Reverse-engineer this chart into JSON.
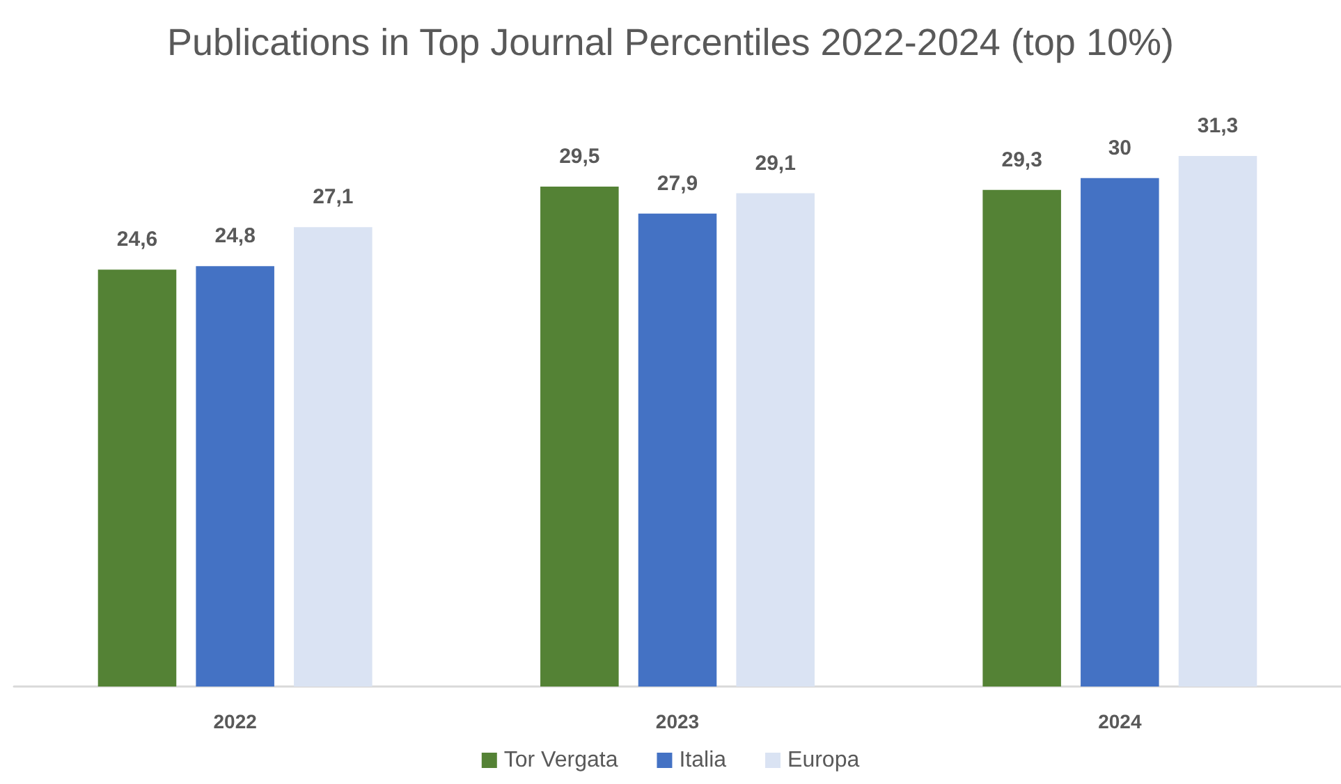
{
  "chart_data": {
    "type": "bar",
    "title": "Publications in Top Journal Percentiles 2022-2024 (top 10%)",
    "categories": [
      "2022",
      "2023",
      "2024"
    ],
    "series": [
      {
        "name": "Tor Vergata",
        "color": "#548235",
        "values": [
          24.6,
          29.5,
          29.3
        ],
        "value_labels": [
          "24,6",
          "29,5",
          "29,3"
        ]
      },
      {
        "name": "Italia",
        "color": "#4472c4",
        "values": [
          24.8,
          27.9,
          30
        ],
        "value_labels": [
          "24,8",
          "27,9",
          "30"
        ]
      },
      {
        "name": "Europa",
        "color": "#dae3f3",
        "values": [
          27.1,
          29.1,
          31.3
        ],
        "value_labels": [
          "27,1",
          "29,1",
          "31,3"
        ]
      }
    ],
    "legend": "bottom"
  }
}
